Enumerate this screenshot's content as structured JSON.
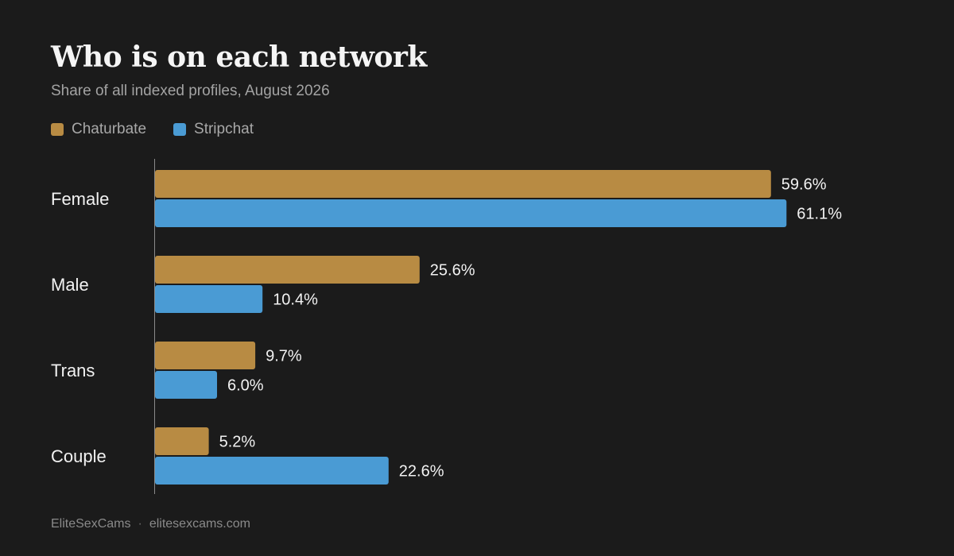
{
  "colors": {
    "background": "#1b1b1b",
    "chaturbate": "#b88b43",
    "stripchat": "#4a9bd4",
    "axis": "#8a8a8a"
  },
  "footer": {
    "brand": "EliteSexCams",
    "separator": "·",
    "url": "elitesexcams.com"
  },
  "chart_data": {
    "type": "bar",
    "orientation": "horizontal",
    "title": "Who is on each network",
    "subtitle": "Share of all indexed profiles, August 2026",
    "categories": [
      "Female",
      "Male",
      "Trans",
      "Couple"
    ],
    "series": [
      {
        "name": "Chaturbate",
        "color": "#b88b43",
        "values": [
          59.6,
          25.6,
          9.7,
          5.2
        ],
        "labels": [
          "59.6%",
          "25.6%",
          "9.7%",
          "5.2%"
        ]
      },
      {
        "name": "Stripchat",
        "color": "#4a9bd4",
        "values": [
          61.1,
          10.4,
          6.0,
          22.6
        ],
        "labels": [
          "61.1%",
          "10.4%",
          "6.0%",
          "22.6%"
        ]
      }
    ],
    "value_unit": "%",
    "xlim": [
      0,
      70
    ],
    "grid": false,
    "legend_position": "top-left"
  }
}
